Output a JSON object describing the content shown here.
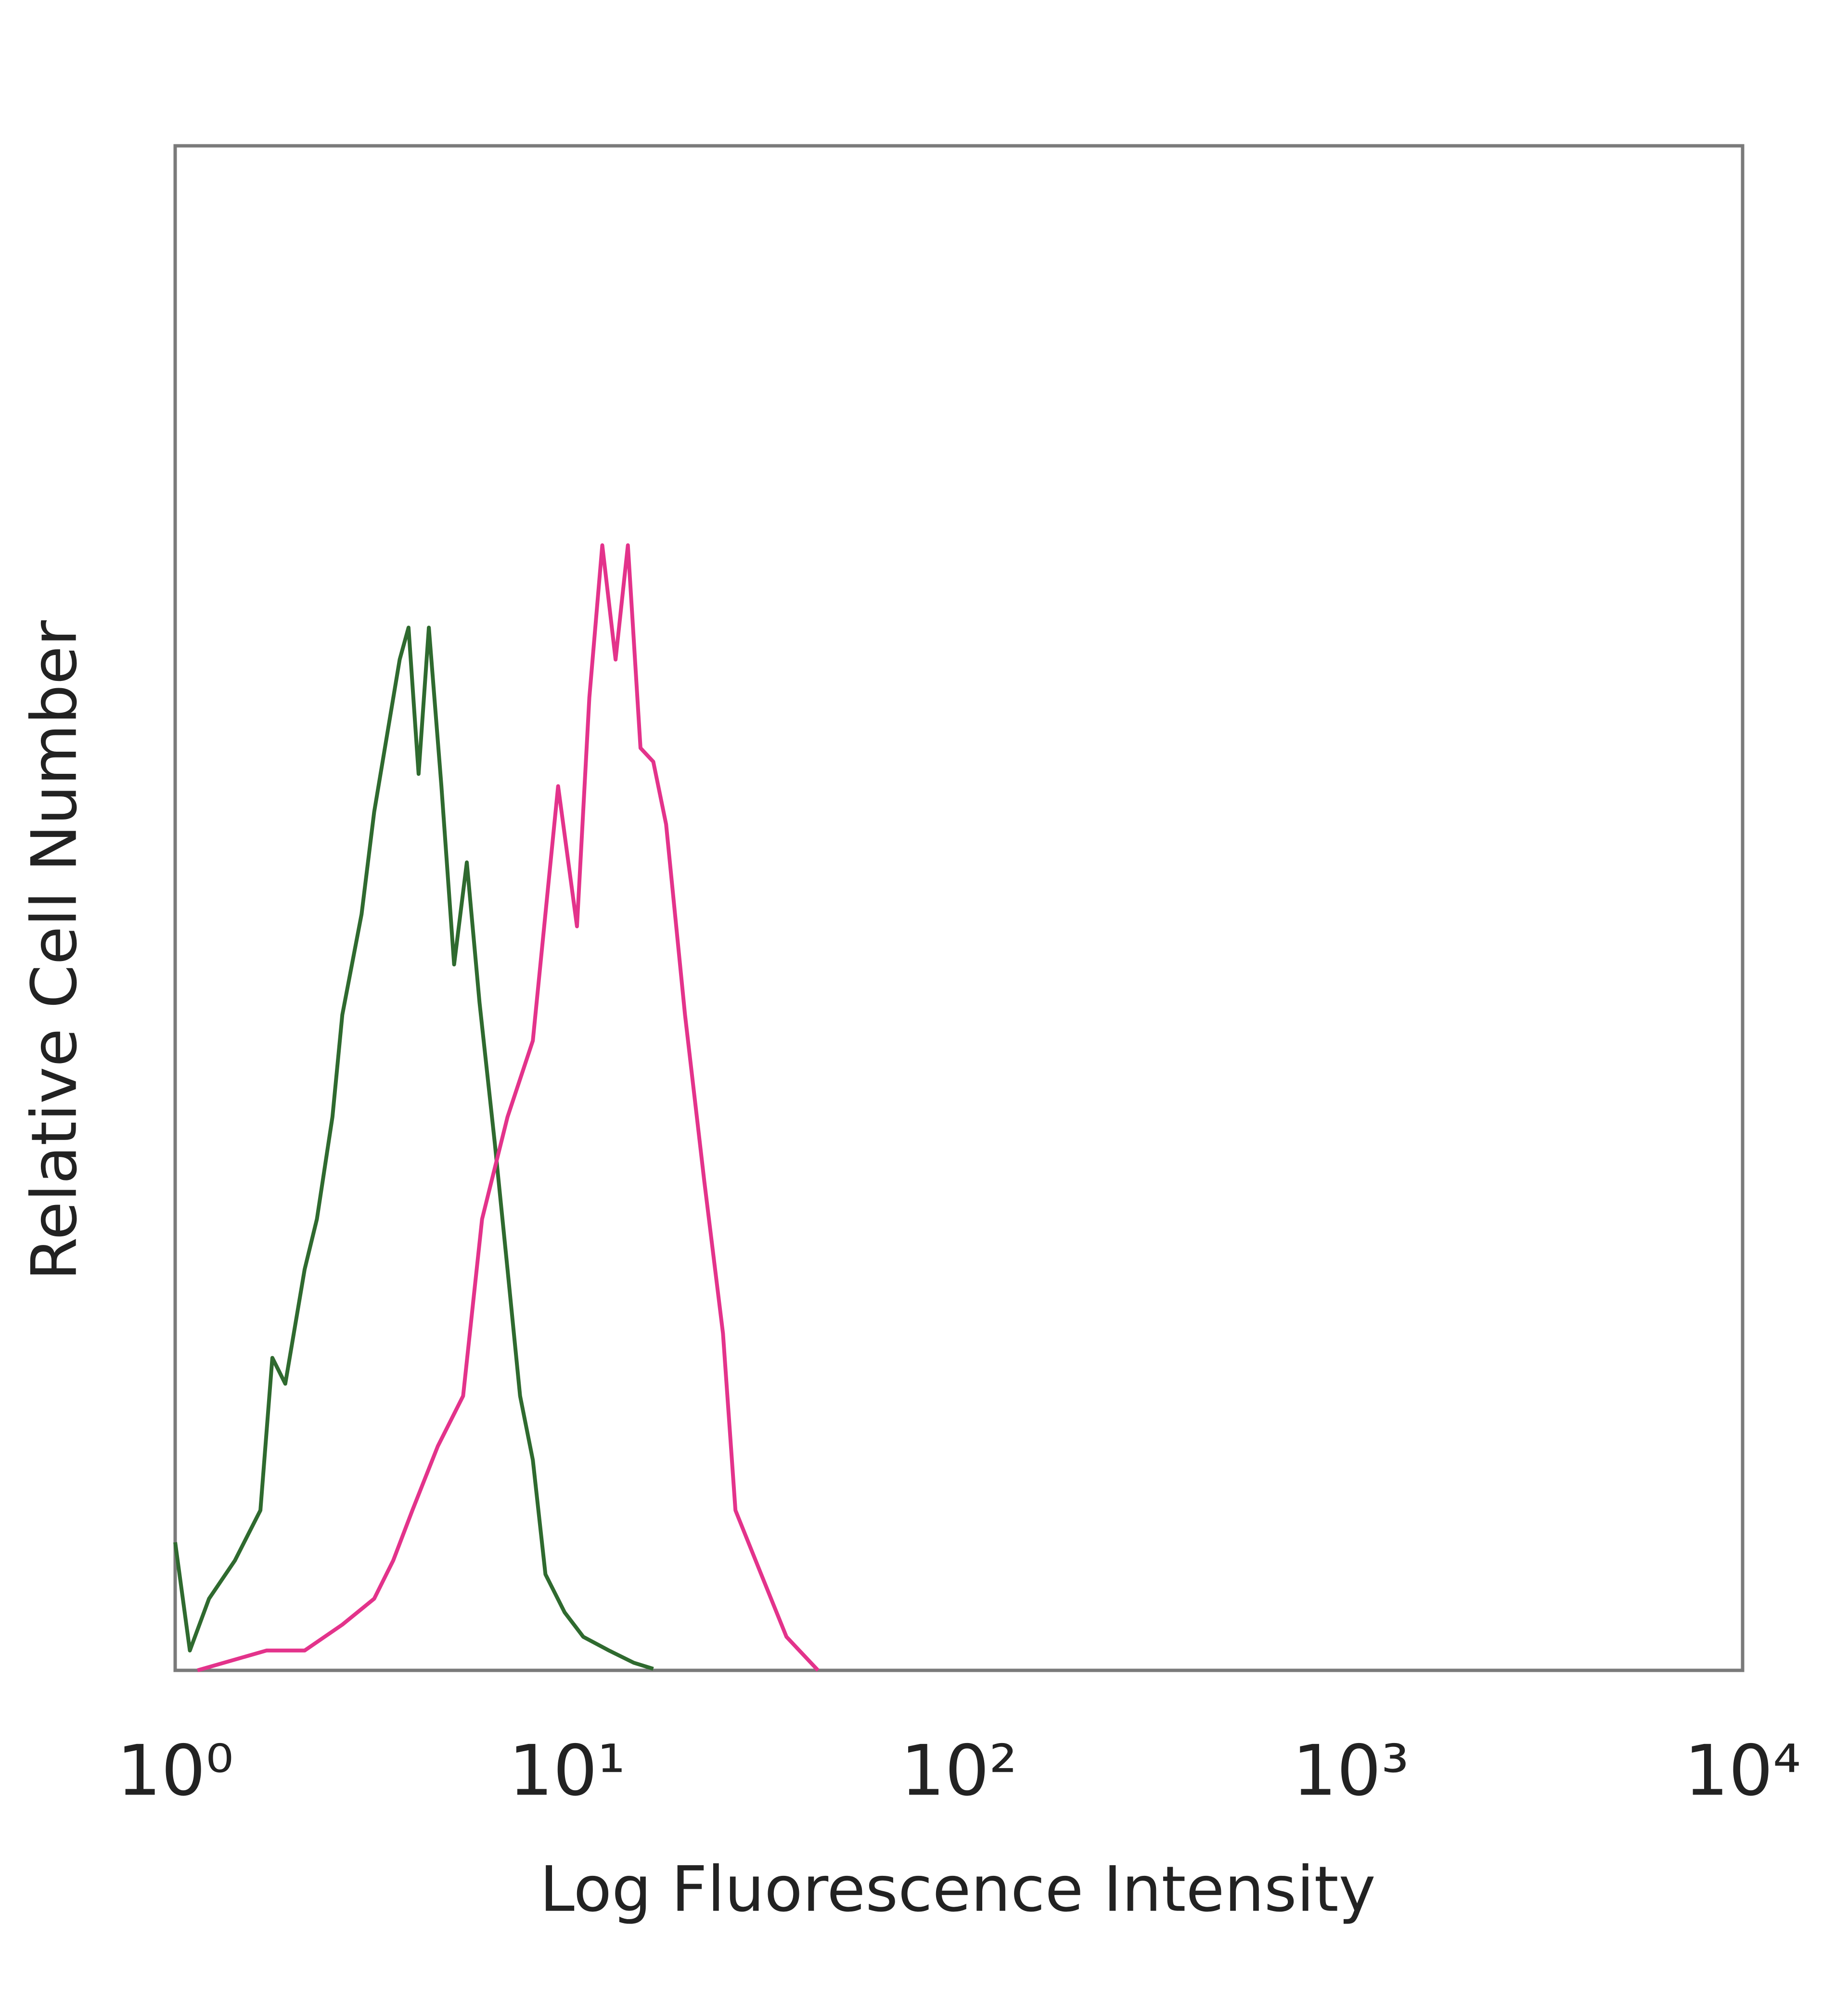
{
  "chart_data": {
    "type": "line",
    "x_label": "Log Fluorescence Intensity",
    "y_label": "Relative Cell Number",
    "xscale": "log",
    "xlim": [
      1,
      10000
    ],
    "xticks": [
      {
        "value": 1,
        "label": "10⁰"
      },
      {
        "value": 10,
        "label": "10¹"
      },
      {
        "value": 100,
        "label": "10²"
      },
      {
        "value": 1000,
        "label": "10³"
      },
      {
        "value": 10000,
        "label": "10⁴"
      }
    ],
    "ylim": [
      0,
      100
    ],
    "grid": false,
    "series": [
      {
        "color": "#2f6a2f",
        "x": [
          1.0,
          1.09,
          1.22,
          1.42,
          1.65,
          1.77,
          1.91,
          2.14,
          2.3,
          2.52,
          2.67,
          2.99,
          3.22,
          3.47,
          3.74,
          3.94,
          4.18,
          4.44,
          4.78,
          5.15,
          5.55,
          5.98,
          6.54,
          7.05,
          7.59,
          8.18,
          8.81,
          9.86,
          11.0,
          12.8,
          14.8,
          16.6
        ],
        "values": [
          8.4,
          1.3,
          4.7,
          7.2,
          10.5,
          20.5,
          18.8,
          26.3,
          29.6,
          36.3,
          43.0,
          49.6,
          56.3,
          61.3,
          66.3,
          68.4,
          58.8,
          68.4,
          58.0,
          46.3,
          53.0,
          43.8,
          34.6,
          26.3,
          18.0,
          13.8,
          6.3,
          3.8,
          2.2,
          1.3,
          0.5,
          0.1
        ]
      },
      {
        "color": "#e3338b",
        "x": [
          1.14,
          1.71,
          2.14,
          2.67,
          3.22,
          3.6,
          4.03,
          4.68,
          5.43,
          6.07,
          7.05,
          8.18,
          9.49,
          10.6,
          11.4,
          12.3,
          13.3,
          14.3,
          15.4,
          16.6,
          17.9,
          20.0,
          22.4,
          25.0,
          26.9,
          31.3,
          36.3,
          43.7
        ],
        "values": [
          0,
          1.3,
          1.3,
          3.0,
          4.7,
          7.2,
          10.5,
          14.7,
          18.0,
          29.6,
          36.3,
          41.3,
          58.0,
          48.8,
          63.8,
          73.8,
          66.3,
          73.8,
          60.5,
          59.6,
          55.5,
          43.0,
          32.1,
          22.1,
          10.5,
          6.3,
          2.2,
          0
        ]
      }
    ]
  }
}
